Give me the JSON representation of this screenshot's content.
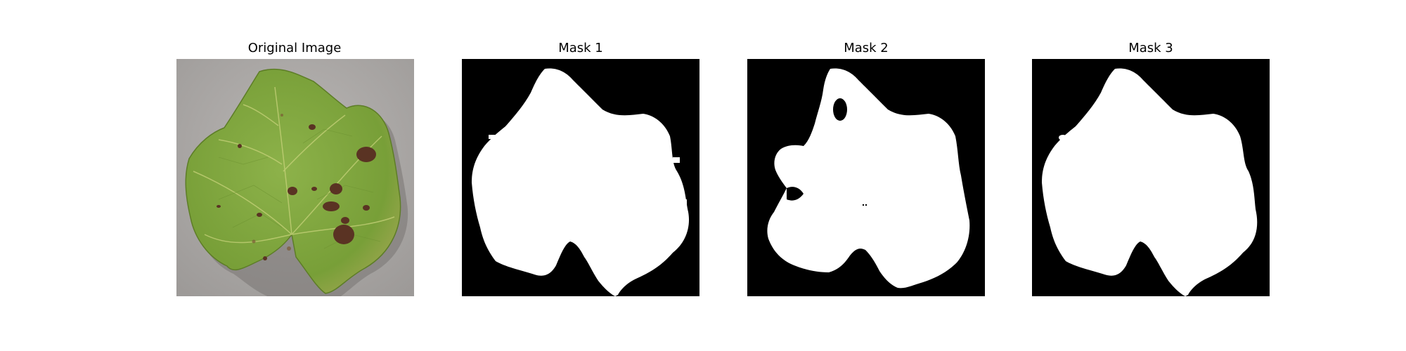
{
  "panels": [
    {
      "title": "Original Image",
      "kind": "photo",
      "subject": "grape leaf with brown lesion spots"
    },
    {
      "title": "Mask 1",
      "kind": "mask"
    },
    {
      "title": "Mask 2",
      "kind": "mask"
    },
    {
      "title": "Mask 3",
      "kind": "mask"
    }
  ],
  "colors": {
    "background": "#ffffff",
    "mask_background": "#000000",
    "mask_foreground": "#ffffff",
    "photo_backdrop": "#a9a6a4",
    "leaf_green": "#7fa43c",
    "leaf_dark_green": "#5f8a2c",
    "lesion_brown": "#5a3323"
  }
}
